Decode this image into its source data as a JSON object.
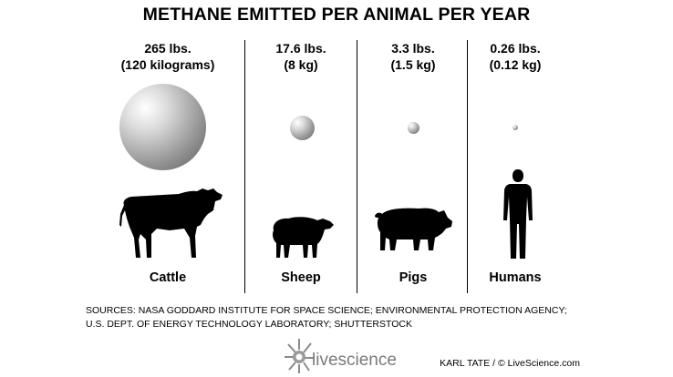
{
  "chart_data": {
    "type": "bar",
    "title": "METHANE EMITTED PER ANIMAL PER YEAR",
    "categories": [
      "Cattle",
      "Sheep",
      "Pigs",
      "Humans"
    ],
    "series": [
      {
        "values": [
          265,
          17.6,
          3.3,
          0.26
        ]
      },
      {
        "values": [
          120,
          8,
          1.5,
          0.12
        ]
      }
    ],
    "labels": [
      {
        "lbs": "265 lbs.",
        "kg": "(120 kilograms)"
      },
      {
        "lbs": "17.6 lbs.",
        "kg": "(8 kg)"
      },
      {
        "lbs": "3.3 lbs.",
        "kg": "(1.5 kg)"
      },
      {
        "lbs": "0.26 lbs.",
        "kg": "(0.12 kg)"
      }
    ]
  },
  "sources": {
    "line1": "SOURCES: NASA GODDARD INSTITUTE FOR SPACE SCIENCE; ENVIRONMENTAL PROTECTION AGENCY;",
    "line2": "U.S. DEPT. OF ENERGY TECHNOLOGY LABORATORY; SHUTTERSTOCK"
  },
  "credit": "KARL TATE / © LiveScience.com",
  "logo_text": "livescience",
  "colors": {
    "sphere_light": "#ffffff",
    "sphere_dark": "#5a5a5a",
    "silhouette": "#000000"
  }
}
